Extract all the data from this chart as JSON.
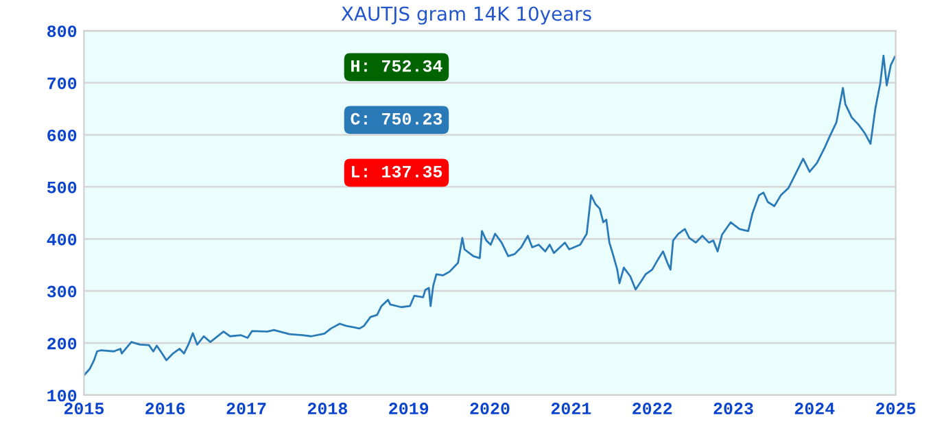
{
  "chart_data": {
    "type": "line",
    "title": "XAUTJS gram 14K 10years",
    "annotations": [
      "H: 752.34",
      "C: 750.23",
      "L: 137.35"
    ],
    "series": [
      {
        "color": "#2a7ab8",
        "x": [
          2015.0,
          2015.07,
          2015.124,
          2015.162,
          2015.205,
          2015.368,
          2015.449,
          2015.465,
          2015.557,
          2015.584,
          2015.692,
          2015.8,
          2015.854,
          2015.897,
          2015.962,
          2016.016,
          2016.097,
          2016.178,
          2016.232,
          2016.286,
          2016.341,
          2016.395,
          2016.476,
          2016.557,
          2016.719,
          2016.8,
          2016.935,
          2017.016,
          2017.07,
          2017.259,
          2017.341,
          2017.53,
          2017.692,
          2017.8,
          2017.962,
          2018.043,
          2018.151,
          2018.232,
          2018.395,
          2018.449,
          2018.53,
          2018.611,
          2018.665,
          2018.746,
          2018.773,
          2018.908,
          2019.016,
          2019.07,
          2019.178,
          2019.205,
          2019.249,
          2019.27,
          2019.303,
          2019.341,
          2019.422,
          2019.503,
          2019.608,
          2019.661,
          2019.688,
          2019.796,
          2019.876,
          2019.903,
          2019.957,
          2020.011,
          2020.065,
          2020.145,
          2020.226,
          2020.306,
          2020.387,
          2020.468,
          2020.522,
          2020.602,
          2020.683,
          2020.737,
          2020.79,
          2020.925,
          2020.978,
          2021.113,
          2021.194,
          2021.247,
          2021.301,
          2021.355,
          2021.398,
          2021.435,
          2021.473,
          2021.516,
          2021.57,
          2021.597,
          2021.651,
          2021.731,
          2021.796,
          2021.866,
          2021.919,
          2022.0,
          2022.081,
          2022.134,
          2022.188,
          2022.226,
          2022.258,
          2022.323,
          2022.403,
          2022.457,
          2022.538,
          2022.618,
          2022.699,
          2022.753,
          2022.806,
          2022.86,
          2022.968,
          2023.075,
          2023.183,
          2023.237,
          2023.317,
          2023.371,
          2023.425,
          2023.505,
          2023.586,
          2023.68,
          2023.78,
          2023.86,
          2023.94,
          2024.03,
          2024.13,
          2024.19,
          2024.27,
          2024.35,
          2024.38,
          2024.46,
          2024.54,
          2024.62,
          2024.69,
          2024.75,
          2024.81,
          2024.85,
          2024.89,
          2024.94,
          2024.99
        ],
        "values": [
          138,
          150,
          167,
          184,
          186,
          184,
          189,
          180,
          197,
          202,
          197,
          196,
          184,
          195,
          180,
          167,
          180,
          189,
          180,
          197,
          219,
          197,
          213,
          202,
          222,
          213,
          215,
          210,
          223,
          222,
          225,
          217,
          215,
          213,
          218,
          228,
          237,
          233,
          228,
          233,
          250,
          254,
          271,
          283,
          274,
          269,
          271,
          291,
          288,
          302,
          306,
          271,
          310,
          332,
          330,
          337,
          354,
          402,
          380,
          367,
          363,
          415,
          397,
          389,
          410,
          393,
          367,
          371,
          384,
          406,
          384,
          389,
          376,
          389,
          373,
          393,
          380,
          389,
          410,
          484,
          467,
          458,
          432,
          437,
          393,
          371,
          341,
          315,
          345,
          328,
          303,
          319,
          332,
          341,
          363,
          376,
          354,
          341,
          397,
          410,
          419,
          402,
          393,
          406,
          393,
          397,
          376,
          408,
          432,
          419,
          415,
          450,
          484,
          489,
          471,
          463,
          484,
          498,
          529,
          554,
          529,
          546,
          577,
          598,
          624,
          690,
          659,
          633,
          620,
          603,
          583,
          651,
          699,
          752,
          695,
          734,
          750
        ]
      }
    ],
    "xlim": [
      2015,
      2025
    ],
    "xticks": [
      2015,
      2016,
      2017,
      2018,
      2019,
      2020,
      2021,
      2022,
      2023,
      2024,
      2025
    ],
    "ylim": [
      100,
      800
    ],
    "yticks": [
      100,
      200,
      300,
      400,
      500,
      600,
      700,
      800
    ],
    "grid": "y",
    "legend": false
  }
}
